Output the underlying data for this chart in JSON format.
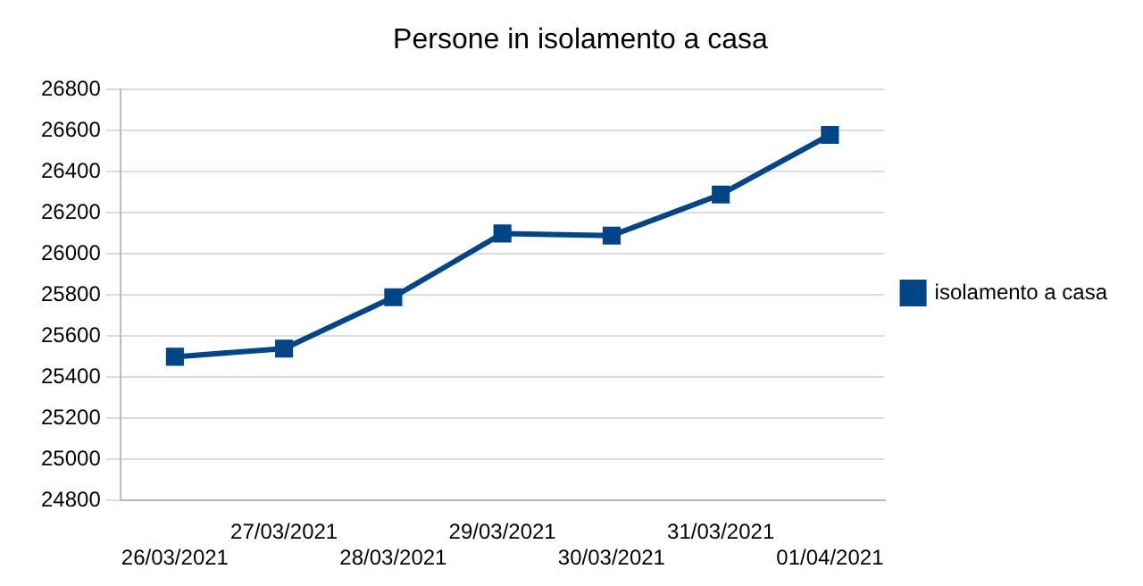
{
  "chart_data": {
    "type": "line",
    "title": "Persone in isolamento a casa",
    "categories": [
      "26/03/2021",
      "27/03/2021",
      "28/03/2021",
      "29/03/2021",
      "30/03/2021",
      "31/03/2021",
      "01/04/2021"
    ],
    "series": [
      {
        "name": "isolamento a casa",
        "color": "#004586",
        "values": [
          25500,
          25540,
          25790,
          26100,
          26090,
          26290,
          26580
        ]
      }
    ],
    "ylim": [
      24800,
      26800
    ],
    "yticks": [
      24800,
      25000,
      25200,
      25400,
      25600,
      25800,
      26000,
      26200,
      26400,
      26600,
      26800
    ],
    "grid": "y",
    "legend": "right",
    "marker": "square",
    "line_style": "solid"
  }
}
